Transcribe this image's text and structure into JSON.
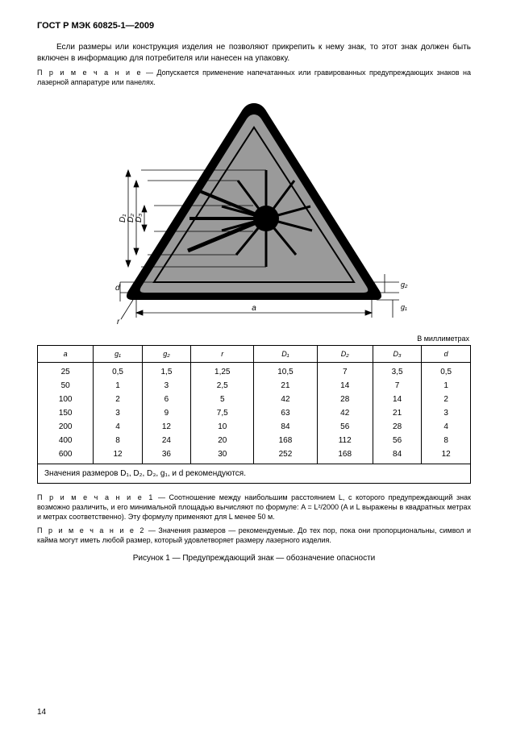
{
  "header": "ГОСТ Р МЭК 60825-1—2009",
  "para1": "Если размеры или конструкция изделия не позволяют прикрепить к нему знак, то этот знак должен быть включен в информацию для потребителя или нанесен на упаковку.",
  "note_top_prefix": "П р и м е ч а н и е",
  "note_top_body": " — Допускается применение напечатанных или гравированных предупреждающих знаков на лазерной аппаратуре или панелях.",
  "units_label": "В миллиметрах",
  "table": {
    "headers": [
      "a",
      "g₁",
      "g₂",
      "r",
      "D₁",
      "D₂",
      "D₃",
      "d"
    ],
    "rows": [
      [
        "25",
        "0,5",
        "1,5",
        "1,25",
        "10,5",
        "7",
        "3,5",
        "0,5"
      ],
      [
        "50",
        "1",
        "3",
        "2,5",
        "21",
        "14",
        "7",
        "1"
      ],
      [
        "100",
        "2",
        "6",
        "5",
        "42",
        "28",
        "14",
        "2"
      ],
      [
        "150",
        "3",
        "9",
        "7,5",
        "63",
        "42",
        "21",
        "3"
      ],
      [
        "200",
        "4",
        "12",
        "10",
        "84",
        "56",
        "28",
        "4"
      ],
      [
        "400",
        "8",
        "24",
        "20",
        "168",
        "112",
        "56",
        "8"
      ],
      [
        "600",
        "12",
        "36",
        "30",
        "252",
        "168",
        "84",
        "12"
      ]
    ],
    "footnote": "Значения размеров D₁, D₂, D₃, g₁, и  d  рекомендуются."
  },
  "note1_prefix": "П р и м е ч а н и е 1",
  "note1_body": " — Соотношение между наибольшим расстоянием L, с которого предупреждающий знак возможно различить, и его минимальной площадью вычисляют по формуле: A = L²/2000 (A и L выражены в квадратных метрах и метрах соответственно). Эту формулу применяют для L менее 50 м.",
  "note2_prefix": "П р и м е ч а н и е 2",
  "note2_body": " — Значения размеров — рекомендуемые. До тех пор, пока они пропорциональны, символ и кайма могут иметь любой размер, который удовлетворяет размеру лазерного изделия.",
  "caption": "Рисунок 1 — Предупреждающий знак — обозначение опасности",
  "page_number": "14",
  "dim_labels": {
    "a": "a",
    "r": "r",
    "d": "d",
    "g1": "g₁",
    "g2": "g₂",
    "D1": "D₁",
    "D2": "D₂",
    "D3": "D₃"
  },
  "colors": {
    "triangle_fill": "#9a9a9a",
    "triangle_border": "#000000",
    "line": "#000000"
  }
}
